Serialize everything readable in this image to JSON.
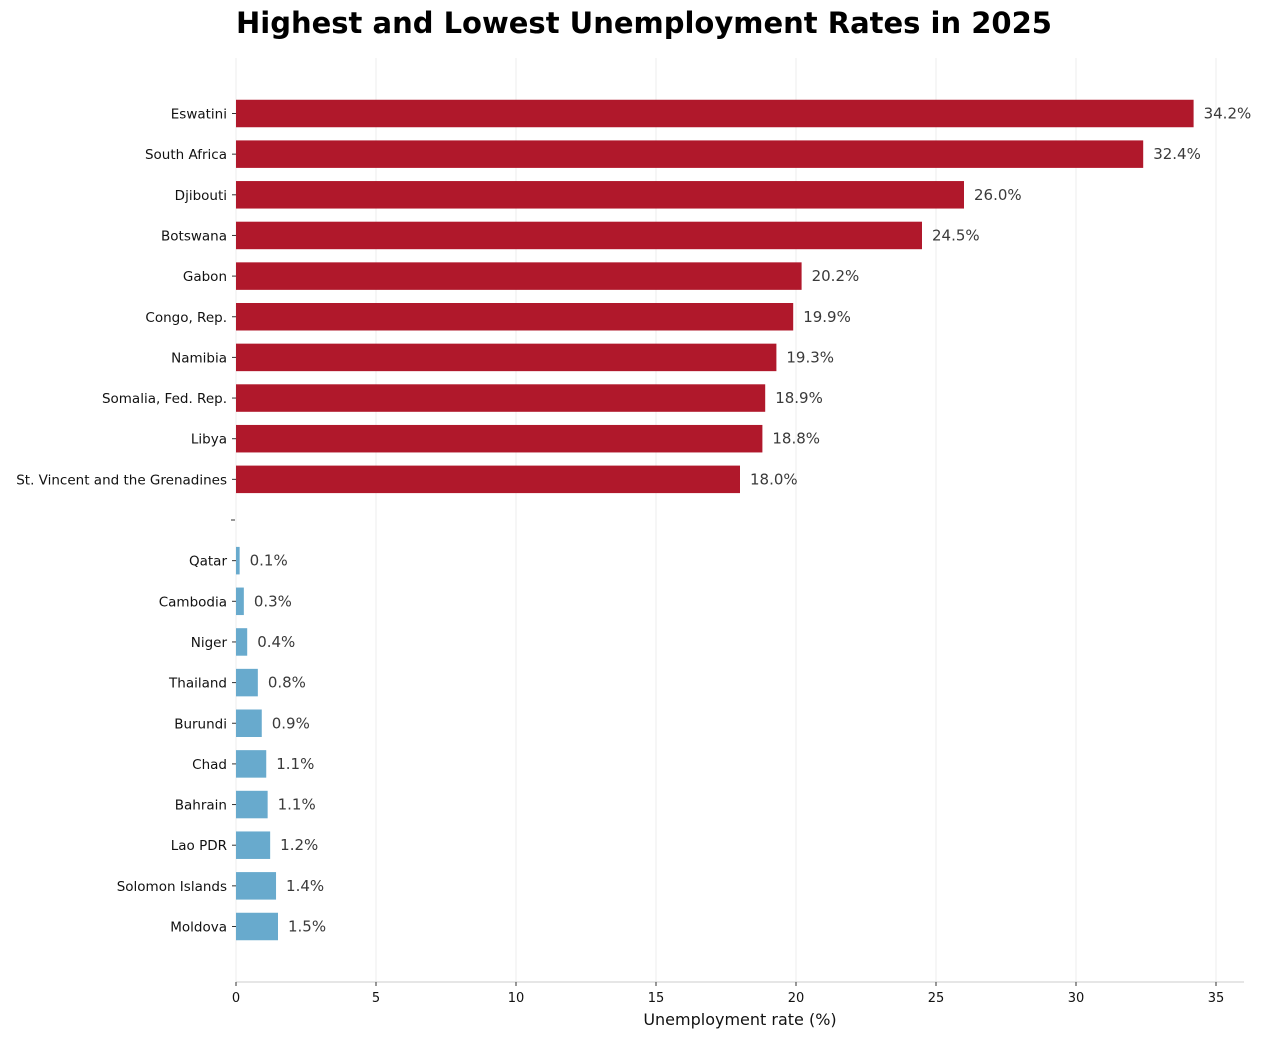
{
  "chart_data": {
    "type": "bar",
    "orientation": "horizontal",
    "title": "Highest and Lowest Unemployment Rates in 2025",
    "xlabel": "Unemployment rate (%)",
    "ylabel": "",
    "xlim": [
      0,
      36
    ],
    "xticks": [
      0,
      5,
      10,
      15,
      20,
      25,
      30,
      35
    ],
    "grid": "vertical",
    "legend": "none",
    "value_suffix": "%",
    "groups": [
      {
        "color": "#b0182b",
        "categories": [
          "Eswatini",
          "South Africa",
          "Djibouti",
          "Botswana",
          "Gabon",
          "Congo, Rep.",
          "Namibia",
          "Somalia, Fed. Rep.",
          "Libya",
          "St. Vincent and the Grenadines"
        ],
        "values": [
          34.2,
          32.4,
          26.0,
          24.5,
          20.2,
          19.9,
          19.3,
          18.9,
          18.8,
          18.0
        ],
        "value_labels": [
          "34.2%",
          "32.4%",
          "26.0%",
          "24.5%",
          "20.2%",
          "19.9%",
          "19.3%",
          "18.9%",
          "18.8%",
          "18.0%"
        ]
      },
      {
        "color": "#68aacd",
        "categories": [
          "Qatar",
          "Cambodia",
          "Niger",
          "Thailand",
          "Burundi",
          "Chad",
          "Bahrain",
          "Lao PDR",
          "Solomon Islands",
          "Moldova"
        ],
        "values": [
          0.13,
          0.28,
          0.4,
          0.78,
          0.92,
          1.08,
          1.13,
          1.22,
          1.43,
          1.5
        ],
        "value_labels": [
          "0.1%",
          "0.3%",
          "0.4%",
          "0.8%",
          "0.9%",
          "1.1%",
          "1.1%",
          "1.2%",
          "1.4%",
          "1.5%"
        ]
      }
    ]
  }
}
